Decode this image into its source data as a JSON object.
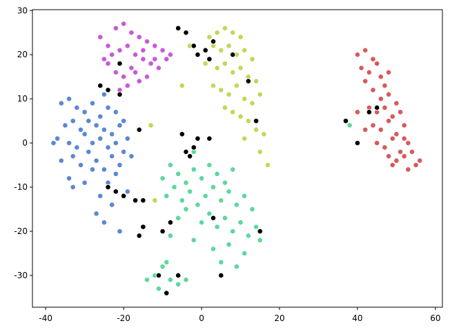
{
  "chart_data": {
    "type": "scatter",
    "xlim": [
      -43.4,
      61.8
    ],
    "ylim": [
      -37.2,
      30.2
    ],
    "xticks": [
      -40,
      -20,
      0,
      20,
      40,
      60
    ],
    "yticks": [
      -30,
      -20,
      -10,
      0,
      10,
      20,
      30
    ],
    "grid": false,
    "series": [
      {
        "color": "#5b87d6",
        "x": [
          -36,
          -34,
          -32,
          -30,
          -28,
          -26,
          -24,
          -22,
          -20,
          -35,
          -33,
          -31,
          -29,
          -27,
          -25,
          -23,
          -21,
          -19,
          -37,
          -34,
          -32,
          -30,
          -28,
          -26,
          -24,
          -22,
          -20,
          -36,
          -33,
          -31,
          -29,
          -27,
          -25,
          -23,
          -21,
          -34,
          -30,
          -28,
          -26,
          -24,
          -22,
          -27,
          -25,
          -23,
          -21,
          -38,
          -18,
          -19,
          -33,
          -25
        ],
        "values": [
          9,
          10,
          8,
          7,
          9,
          6,
          8,
          7,
          5,
          4,
          5,
          3,
          5,
          4,
          3,
          2,
          4,
          1,
          1,
          0,
          -1,
          2,
          0,
          1,
          -1,
          0,
          -2,
          -4,
          -3,
          -5,
          -2,
          -4,
          -6,
          -3,
          -5,
          -8,
          -9,
          -6,
          -12,
          -9,
          -7,
          -16,
          -18,
          -14,
          -20,
          0,
          -3,
          -11,
          -10,
          11
        ]
      },
      {
        "color": "#c65bd8",
        "x": [
          -26,
          -24,
          -22,
          -20,
          -18,
          -16,
          -14,
          -12,
          -10,
          -25,
          -23,
          -21,
          -19,
          -17,
          -15,
          -13,
          -11,
          -9,
          -22,
          -20,
          -18,
          -16,
          -14,
          -21,
          -19,
          -24,
          -12,
          -8,
          -15,
          -17
        ],
        "values": [
          24,
          22,
          26,
          27,
          25,
          24,
          23,
          22,
          21,
          19,
          20,
          21,
          22,
          20,
          19,
          18,
          17,
          19,
          16,
          15,
          17,
          14,
          15,
          12,
          13,
          18,
          19,
          20,
          21,
          16
        ]
      },
      {
        "color": "#bfd958",
        "x": [
          2,
          4,
          6,
          8,
          10,
          3,
          5,
          7,
          9,
          11,
          13,
          1,
          4,
          6,
          8,
          10,
          12,
          14,
          3,
          5,
          7,
          9,
          11,
          13,
          15,
          6,
          8,
          10,
          12,
          14,
          16,
          11,
          17,
          -3,
          -5,
          15,
          -13,
          -12
        ],
        "values": [
          24,
          25,
          26,
          25,
          24,
          22,
          21,
          22,
          20,
          21,
          19,
          18,
          17,
          18,
          16,
          17,
          15,
          14,
          13,
          12,
          11,
          13,
          10,
          9,
          11,
          8,
          7,
          6,
          5,
          3,
          2,
          1,
          -5,
          22,
          13,
          -2,
          4,
          -13
        ]
      },
      {
        "color": "#5cd99b",
        "x": [
          -10,
          -8,
          -6,
          -4,
          -2,
          0,
          2,
          4,
          6,
          8,
          -9,
          -7,
          -5,
          -3,
          -1,
          1,
          3,
          5,
          7,
          9,
          11,
          13,
          -6,
          -4,
          0,
          2,
          4,
          6,
          8,
          10,
          12,
          14,
          -8,
          -2,
          3,
          7,
          11,
          15,
          5,
          9,
          -12,
          -10,
          -8,
          -6,
          -14,
          -11,
          -4,
          -9,
          -2,
          38
        ],
        "values": [
          -8,
          -5,
          -7,
          -9,
          -6,
          -8,
          -5,
          -7,
          -9,
          -6,
          -12,
          -10,
          -13,
          -11,
          -14,
          -12,
          -10,
          -13,
          -11,
          -14,
          -12,
          -15,
          -17,
          -15,
          -18,
          -16,
          -19,
          -17,
          -20,
          -18,
          -21,
          -19,
          -21,
          -22,
          -24,
          -23,
          -25,
          -22,
          -27,
          -28,
          -30,
          -28,
          -31,
          -32,
          -31,
          -33,
          -31,
          -27,
          -2,
          4
        ]
      },
      {
        "color": "#d65b5b",
        "x": [
          40,
          42,
          44,
          41,
          43,
          45,
          46,
          42,
          44,
          47,
          46,
          48,
          50,
          43,
          45,
          47,
          49,
          51,
          44,
          46,
          48,
          50,
          52,
          45,
          47,
          49,
          51,
          53,
          48,
          50,
          52,
          54,
          55,
          53,
          56,
          49,
          42,
          40,
          48,
          52
        ],
        "values": [
          20,
          21,
          19,
          17,
          16,
          18,
          15,
          14,
          12,
          13,
          10,
          11,
          9,
          8,
          7,
          8,
          6,
          7,
          4,
          3,
          5,
          2,
          4,
          0,
          -1,
          1,
          -2,
          0,
          -3,
          -4,
          -3,
          -2,
          -5,
          -6,
          -4,
          -5,
          3,
          7,
          16,
          1
        ]
      },
      {
        "color": "#000000",
        "x": [
          -26,
          -24,
          -21,
          -24,
          -22,
          -20,
          -17,
          -16,
          -15,
          -6,
          -4,
          -2,
          -1,
          1,
          3,
          2,
          -4,
          -2,
          -1,
          -3,
          -8,
          -10,
          -11,
          -6,
          -9,
          2,
          5,
          14,
          12,
          8,
          43,
          40,
          45,
          37,
          -5,
          -15,
          -16,
          -21,
          3,
          15
        ],
        "values": [
          13,
          12,
          11,
          -10,
          -11,
          -12,
          -13,
          -21,
          -19,
          26,
          25,
          22,
          20,
          21,
          23,
          19,
          -2,
          -1,
          1,
          -3,
          -18,
          -20,
          -30,
          -30,
          -34,
          1,
          -30,
          5,
          14,
          20,
          7,
          0,
          8,
          5,
          2,
          -13,
          3,
          18,
          -17,
          -20
        ]
      }
    ]
  }
}
